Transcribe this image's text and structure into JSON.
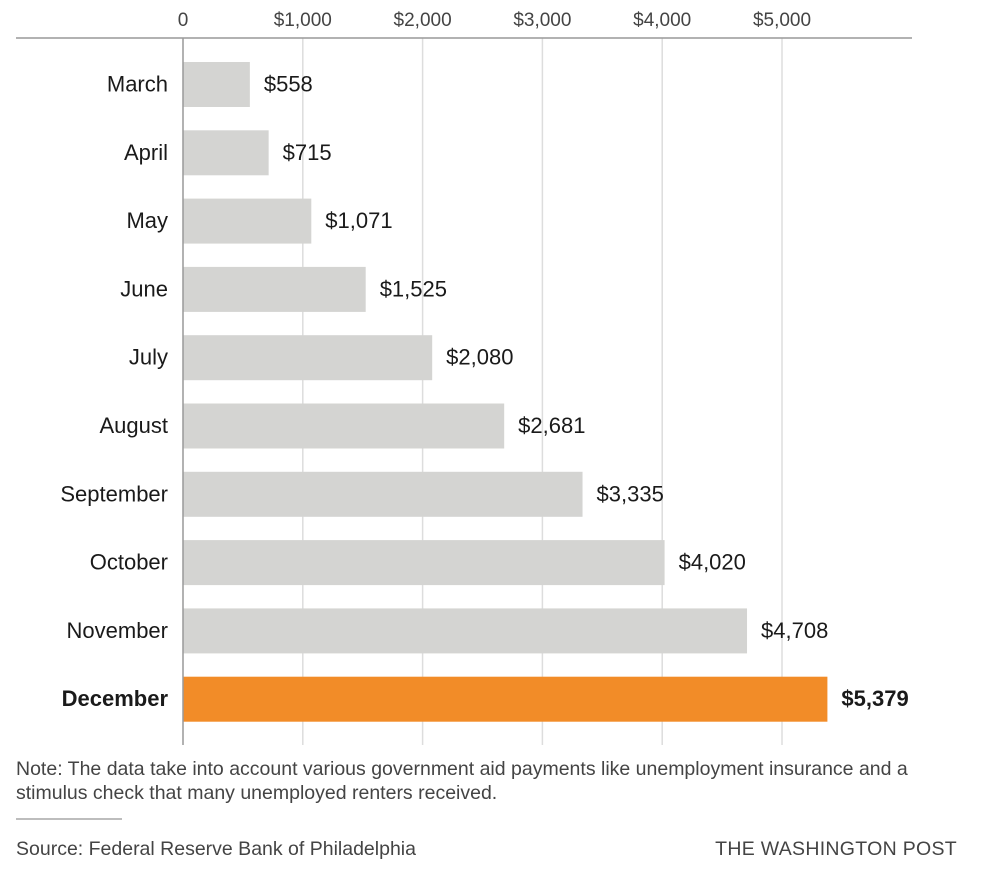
{
  "chart_data": {
    "type": "bar",
    "orientation": "horizontal",
    "categories": [
      "March",
      "April",
      "May",
      "June",
      "July",
      "August",
      "September",
      "October",
      "November",
      "December"
    ],
    "values": [
      558,
      715,
      1071,
      1525,
      2080,
      2681,
      3335,
      4020,
      4708,
      5379
    ],
    "value_labels": [
      "$558",
      "$715",
      "$1,071",
      "$1,525",
      "$2,080",
      "$2,681",
      "$3,335",
      "$4,020",
      "$4,708",
      "$5,379"
    ],
    "highlight": "December",
    "x_ticks": [
      0,
      1000,
      2000,
      3000,
      4000,
      5000
    ],
    "x_tick_labels": [
      "0",
      "$1,000",
      "$2,000",
      "$3,000",
      "$4,000",
      "$5,000"
    ],
    "xlim": [
      0,
      6000
    ],
    "grid": true,
    "colors": {
      "bar": "#d4d4d2",
      "highlight": "#f28c28",
      "grid": "#dddddd",
      "axis": "#999999"
    }
  },
  "note": "Note: The data take into account various government aid payments like unemployment insurance and a stimulus check that many unemployed renters received.",
  "source": "Source: Federal Reserve Bank of Philadelphia",
  "credit": "THE WASHINGTON POST"
}
